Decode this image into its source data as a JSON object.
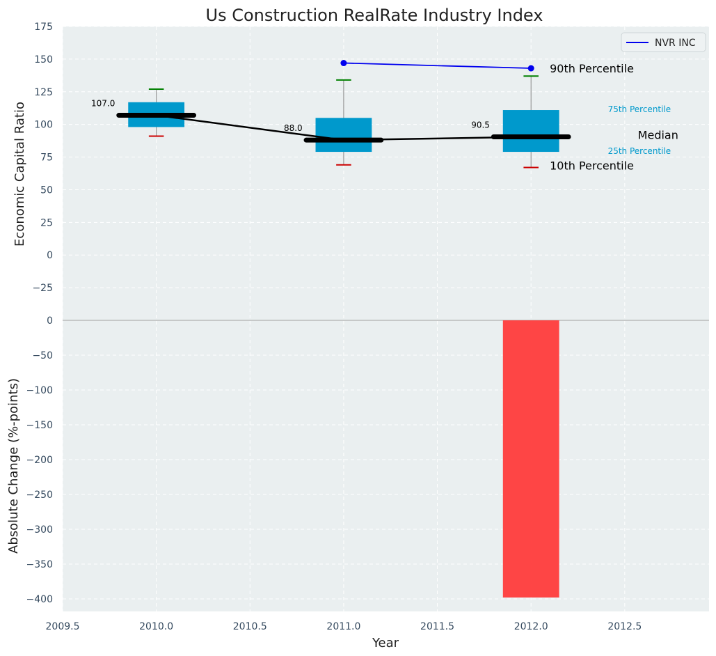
{
  "chart_data": {
    "type": "box",
    "title": "Us Construction RealRate Industry Index",
    "xlabel": "Year",
    "top_panel": {
      "ylabel": "Economic Capital Ratio",
      "ylim": [
        -50,
        175
      ],
      "yticks": [
        -25,
        0,
        25,
        50,
        75,
        100,
        125,
        150,
        175
      ],
      "boxes": [
        {
          "x": 2010,
          "p10": 91,
          "p25": 98,
          "median": 107,
          "p75": 117,
          "p90": 127,
          "median_label": "107.0"
        },
        {
          "x": 2011,
          "p10": 69,
          "p25": 79,
          "median": 88,
          "p75": 105,
          "p90": 134,
          "median_label": "88.0"
        },
        {
          "x": 2012,
          "p10": 67,
          "p25": 79,
          "median": 90.5,
          "p75": 111,
          "p90": 137,
          "median_label": "90.5"
        }
      ],
      "company_series": {
        "name": "NVR INC",
        "x": [
          2011,
          2012
        ],
        "y": [
          147,
          143
        ]
      },
      "percentile_labels": {
        "p90": "90th Percentile",
        "p75": "75th Percentile",
        "median": "Median",
        "p25": "25th Percentile",
        "p10": "10th Percentile"
      }
    },
    "bottom_panel": {
      "ylabel": "Absolute Change (%-points)",
      "ylim": [
        -418,
        0
      ],
      "yticks": [
        0,
        -50,
        -100,
        -150,
        -200,
        -250,
        -300,
        -350,
        -400
      ],
      "bars": [
        {
          "x": 2012,
          "value": -398
        }
      ]
    },
    "xlim": [
      2009.5,
      2012.95
    ],
    "xticks": [
      2009.5,
      2010.0,
      2010.5,
      2011.0,
      2011.5,
      2012.0,
      2012.5
    ],
    "legend": {
      "position": "top-right",
      "entries": [
        "NVR INC"
      ]
    },
    "grid": true,
    "colors": {
      "background": "#eaeff0",
      "box": "#0099cc",
      "median": "#000000",
      "company": "#0000ee",
      "p90_cap": "#008000",
      "p10_cap": "#cc0000",
      "bar": "#ff3b3b"
    }
  }
}
